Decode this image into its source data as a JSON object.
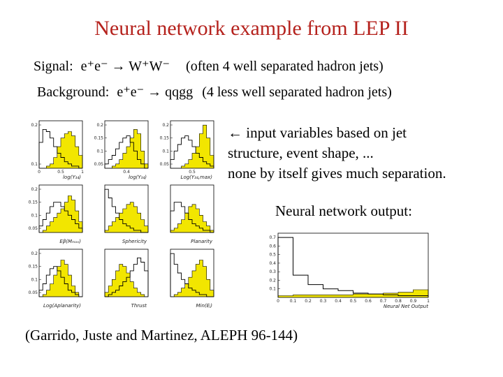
{
  "title": "Neural network example from LEP II",
  "signal": {
    "label": "Signal:",
    "process": "e⁺e⁻ → W⁺W⁻",
    "note": "(often 4 well separated hadron jets)"
  },
  "background": {
    "label": "Background:",
    "process": "e⁺e⁻ → qqgg",
    "note": "(4 less well separated hadron jets)"
  },
  "caption": {
    "line1": "← input variables based on jet",
    "line2": "structure, event shape, ...",
    "line3": "none by itself gives much separation."
  },
  "nn_label": "Neural network output:",
  "reference": "(Garrido, Juste and Martinez, ALEPH 96-144)",
  "colors": {
    "title": "#b5221d",
    "signal_fill": "#f2e600",
    "line": "#000000"
  },
  "chart_data": [
    {
      "type": "area",
      "xlabel": "log(Y₃₄)",
      "ytick_labels": [
        "0.2",
        "0.1"
      ],
      "xtick_labels": [
        "0",
        "0.5",
        "1"
      ],
      "signal": [
        0,
        0,
        0.01,
        0.02,
        0.05,
        0.1,
        0.14,
        0.16,
        0.17,
        0.15,
        0.1,
        0.06
      ],
      "background": [
        0.12,
        0.18,
        0.17,
        0.14,
        0.1,
        0.07,
        0.05,
        0.03,
        0.02,
        0.01,
        0.01,
        0
      ]
    },
    {
      "type": "area",
      "xlabel": "log(Y₃₄)",
      "ytick_labels": [
        "0.2",
        "0.15",
        "0.1",
        "0.05"
      ],
      "xtick_labels": [
        "0.4"
      ],
      "signal": [
        0,
        0,
        0.01,
        0.02,
        0.04,
        0.07,
        0.1,
        0.14,
        0.18,
        0.16,
        0.08,
        0.02
      ],
      "background": [
        0.02,
        0.04,
        0.06,
        0.09,
        0.12,
        0.14,
        0.15,
        0.12,
        0.08,
        0.04,
        0.02,
        0
      ]
    },
    {
      "type": "area",
      "xlabel": "Log(Y₃₄,max)",
      "ytick_labels": [
        "0.2",
        "0.15",
        "0.1",
        "0.05"
      ],
      "xtick_labels": [
        "0.5"
      ],
      "signal": [
        0,
        0,
        0,
        0.01,
        0.02,
        0.04,
        0.07,
        0.1,
        0.16,
        0.2,
        0.14,
        0.06
      ],
      "background": [
        0.04,
        0.08,
        0.11,
        0.14,
        0.15,
        0.13,
        0.1,
        0.07,
        0.05,
        0.03,
        0.02,
        0.01
      ]
    },
    {
      "type": "area",
      "xlabel": "Eβ(Mₘₐₓ)",
      "ytick_labels": [
        "0.2",
        "0.15",
        "0.1",
        "0.05"
      ],
      "xtick_labels": [],
      "signal": [
        0,
        0.01,
        0.03,
        0.05,
        0.07,
        0.09,
        0.11,
        0.14,
        0.17,
        0.15,
        0.1,
        0.05
      ],
      "background": [
        0.03,
        0.06,
        0.09,
        0.12,
        0.14,
        0.14,
        0.12,
        0.1,
        0.08,
        0.06,
        0.04,
        0.02
      ]
    },
    {
      "type": "area",
      "xlabel": "Sphericity",
      "ytick_labels": [],
      "xtick_labels": [],
      "signal": [
        0.01,
        0.03,
        0.05,
        0.07,
        0.09,
        0.11,
        0.13,
        0.14,
        0.12,
        0.09,
        0.06,
        0.03
      ],
      "background": [
        0.2,
        0.16,
        0.12,
        0.09,
        0.06,
        0.04,
        0.03,
        0.02,
        0.01,
        0.01,
        0,
        0
      ]
    },
    {
      "type": "area",
      "xlabel": "Planarity",
      "ytick_labels": [],
      "xtick_labels": [],
      "signal": [
        0.01,
        0.02,
        0.04,
        0.06,
        0.09,
        0.12,
        0.13,
        0.11,
        0.08,
        0.05,
        0.03,
        0.01
      ],
      "background": [
        0.1,
        0.14,
        0.14,
        0.12,
        0.09,
        0.06,
        0.04,
        0.03,
        0.02,
        0.01,
        0.01,
        0
      ]
    },
    {
      "type": "area",
      "xlabel": "Log(Aplanarity)",
      "ytick_labels": [
        "0.2",
        "0.15",
        "0.1",
        "0.05"
      ],
      "xtick_labels": [],
      "signal": [
        0,
        0.01,
        0.03,
        0.06,
        0.1,
        0.14,
        0.17,
        0.15,
        0.1,
        0.05,
        0.02,
        0
      ],
      "background": [
        0.03,
        0.06,
        0.1,
        0.13,
        0.14,
        0.12,
        0.09,
        0.06,
        0.03,
        0.02,
        0.01,
        0
      ]
    },
    {
      "type": "area",
      "xlabel": "Thrust",
      "ytick_labels": [],
      "xtick_labels": [],
      "signal": [
        0.02,
        0.05,
        0.08,
        0.12,
        0.15,
        0.14,
        0.11,
        0.07,
        0.04,
        0.02,
        0.01,
        0
      ],
      "background": [
        0,
        0.01,
        0.02,
        0.03,
        0.05,
        0.07,
        0.09,
        0.12,
        0.15,
        0.18,
        0.16,
        0.12
      ]
    },
    {
      "type": "area",
      "xlabel": "Min(Eⱼ)",
      "ytick_labels": [],
      "xtick_labels": [],
      "signal": [
        0,
        0.01,
        0.02,
        0.04,
        0.06,
        0.09,
        0.12,
        0.15,
        0.17,
        0.14,
        0.08,
        0.03
      ],
      "background": [
        0.2,
        0.15,
        0.11,
        0.08,
        0.06,
        0.04,
        0.03,
        0.02,
        0.01,
        0.01,
        0,
        0
      ]
    },
    {
      "type": "bar",
      "title": "Neural network output",
      "xlabel": "Neural Net Output",
      "ytick_labels": [
        "0.7",
        "0.6",
        "0.5",
        "0.4",
        "0.3",
        "0.2",
        "0.1"
      ],
      "xtick_labels": [
        "0",
        "0.1",
        "0.2",
        "0.3",
        "0.4",
        "0.5",
        "0.6",
        "0.7",
        "0.8",
        "0.9",
        "1"
      ],
      "ylim": [
        0,
        0.75
      ],
      "background": [
        0.7,
        0.26,
        0.15,
        0.1,
        0.08,
        0.05,
        0.04,
        0.03,
        0.02,
        0.02
      ],
      "signal": [
        0.02,
        0.03,
        0.03,
        0.03,
        0.03,
        0.04,
        0.04,
        0.05,
        0.06,
        0.09
      ]
    }
  ]
}
